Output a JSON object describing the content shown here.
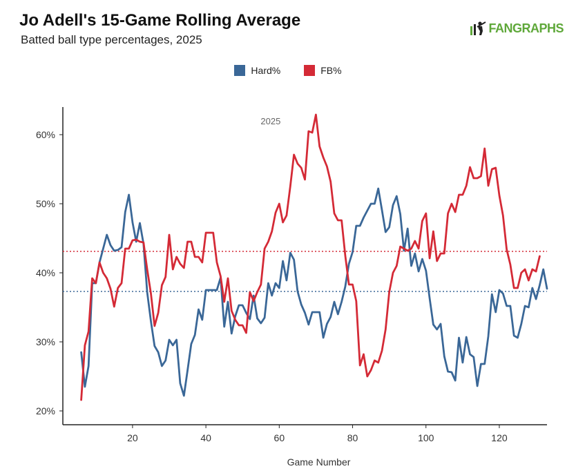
{
  "header": {
    "title": "Jo Adell's 15-Game Rolling Average",
    "subtitle": "Batted ball type percentages, 2025",
    "logo_text": "FANGRAPHS"
  },
  "chart_data": {
    "type": "line",
    "panel_label": "2025",
    "xlabel": "Game Number",
    "ylabel": "",
    "x_ticks": [
      20,
      40,
      60,
      80,
      100,
      120
    ],
    "y_ticks": [
      20,
      30,
      40,
      50,
      60
    ],
    "y_tick_labels": [
      "20%",
      "30%",
      "40%",
      "50%",
      "60%"
    ],
    "x_tick_labels": [
      "20",
      "40",
      "60",
      "80",
      "100",
      "120"
    ],
    "xlim": [
      1,
      133
    ],
    "ylim": [
      18,
      64
    ],
    "legend_position": "top-center",
    "series": [
      {
        "name": "Hard%",
        "color": "#3a6797",
        "average": 37.3,
        "x_start": 6,
        "values": [
          28.5,
          23.5,
          26.5,
          38.5,
          38.5,
          41.5,
          43.5,
          45.5,
          44.0,
          43.2,
          43.3,
          43.7,
          48.8,
          51.3,
          47.3,
          44.5,
          47.2,
          44.2,
          37.2,
          33.0,
          29.4,
          28.5,
          26.5,
          27.3,
          30.3,
          29.5,
          30.3,
          24.0,
          22.2,
          25.9,
          29.7,
          31.0,
          34.7,
          33.2,
          37.5,
          37.5,
          37.5,
          37.5,
          39.3,
          32.2,
          35.8,
          31.2,
          33.7,
          35.3,
          35.3,
          34.2,
          33.3,
          36.7,
          33.4,
          32.7,
          33.5,
          38.5,
          36.7,
          38.5,
          37.8,
          41.7,
          38.9,
          42.9,
          41.9,
          37.3,
          35.4,
          34.2,
          32.5,
          34.3,
          34.3,
          34.3,
          30.6,
          32.6,
          33.6,
          35.8,
          34.0,
          35.8,
          38.0,
          41.3,
          43.0,
          46.8,
          46.8,
          48.0,
          49.0,
          50.0,
          50.0,
          52.2,
          49.1,
          45.9,
          46.6,
          49.8,
          51.1,
          48.5,
          43.2,
          46.4,
          41.0,
          42.8,
          40.2,
          42.0,
          40.3,
          36.3,
          32.5,
          31.8,
          32.6,
          27.9,
          25.7,
          25.6,
          24.4,
          30.6,
          27.0,
          30.7,
          28.2,
          27.8,
          23.6,
          26.8,
          26.8,
          30.8,
          36.9,
          34.3,
          37.5,
          37.0,
          35.2,
          35.2,
          30.9,
          30.6,
          32.6,
          35.2,
          35.0,
          37.8,
          36.2,
          38.2,
          40.5,
          37.7
        ]
      },
      {
        "name": "FB%",
        "color": "#d42a36",
        "average": 43.1,
        "x_start": 6,
        "values": [
          21.6,
          29.5,
          31.5,
          39.2,
          38.5,
          41.5,
          40.0,
          39.2,
          37.7,
          35.1,
          37.8,
          38.5,
          43.5,
          43.5,
          44.7,
          44.8,
          44.5,
          44.4,
          40.5,
          37.0,
          32.3,
          34.2,
          38.2,
          39.4,
          45.5,
          40.5,
          42.3,
          41.3,
          40.7,
          44.5,
          44.5,
          42.3,
          42.3,
          41.5,
          45.8,
          45.8,
          45.8,
          41.5,
          39.5,
          35.8,
          39.2,
          34.5,
          33.2,
          32.4,
          32.4,
          31.3,
          37.2,
          35.9,
          37.2,
          38.3,
          43.5,
          44.5,
          46.0,
          48.7,
          50.0,
          47.3,
          48.3,
          52.5,
          57.1,
          55.8,
          55.2,
          53.5,
          60.5,
          60.3,
          62.9,
          58.3,
          56.7,
          55.4,
          53.2,
          48.6,
          47.6,
          47.6,
          42.5,
          38.3,
          38.3,
          35.9,
          26.6,
          28.2,
          25.0,
          25.9,
          27.3,
          27.0,
          28.7,
          31.8,
          37.2,
          40.0,
          41.0,
          43.8,
          43.5,
          43.2,
          43.5,
          44.6,
          43.5,
          47.5,
          48.6,
          42.1,
          46.0,
          41.7,
          42.8,
          42.8,
          48.6,
          50.0,
          48.8,
          51.3,
          51.3,
          52.6,
          55.3,
          53.7,
          53.7,
          54.0,
          58.0,
          52.6,
          55.0,
          55.2,
          51.2,
          48.3,
          43.4,
          41.2,
          37.8,
          37.8,
          40.0,
          40.5,
          38.9,
          40.5,
          40.2,
          42.4
        ]
      }
    ]
  }
}
